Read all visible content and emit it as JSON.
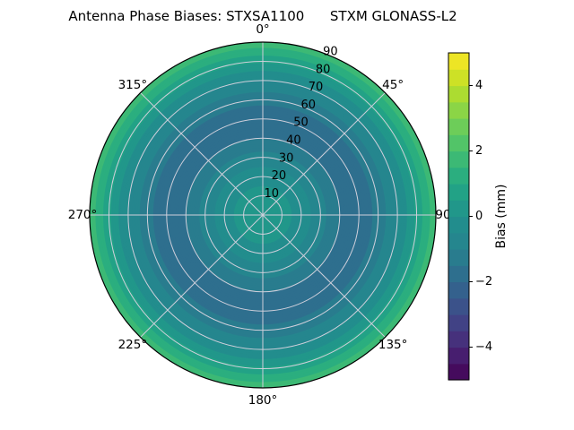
{
  "title": "Antenna Phase Biases: STXSA1100      STXM GLONASS-L2",
  "colors": {
    "background": "#ffffff",
    "grid": "#cfcfdb",
    "outline": "#000000",
    "text": "#000000"
  },
  "chart_data": {
    "type": "heatmap",
    "projection": "polar",
    "title": "Antenna Phase Biases: STXSA1100      STXM GLONASS-L2",
    "azimuth_tick_labels": [
      "0°",
      "45°",
      "90",
      "135°",
      "180°",
      "225°",
      "270°",
      "315°"
    ],
    "zenith_tick_labels": [
      "10",
      "20",
      "30",
      "40",
      "50",
      "60",
      "70",
      "80",
      "90"
    ],
    "zenith_deg": [
      0,
      10,
      20,
      30,
      40,
      50,
      60,
      70,
      80,
      90
    ],
    "bias_mm": [
      0.5,
      0.2,
      -0.2,
      -0.8,
      -1.5,
      -1.8,
      -1.4,
      -0.5,
      0.6,
      1.9
    ],
    "contour_step_mm": 0.5,
    "grid": true,
    "colorbar": {
      "label": "Bias (mm)",
      "ticks": [
        -4,
        -2,
        0,
        2,
        4
      ],
      "vmin": -5,
      "vmax": 5,
      "position": "right"
    },
    "colormap": {
      "name": "viridis",
      "stops": [
        "#440154",
        "#482878",
        "#3e4a89",
        "#31688e",
        "#26828e",
        "#21918c",
        "#22a884",
        "#44bf70",
        "#7ad151",
        "#bddf26",
        "#fde725"
      ]
    }
  }
}
